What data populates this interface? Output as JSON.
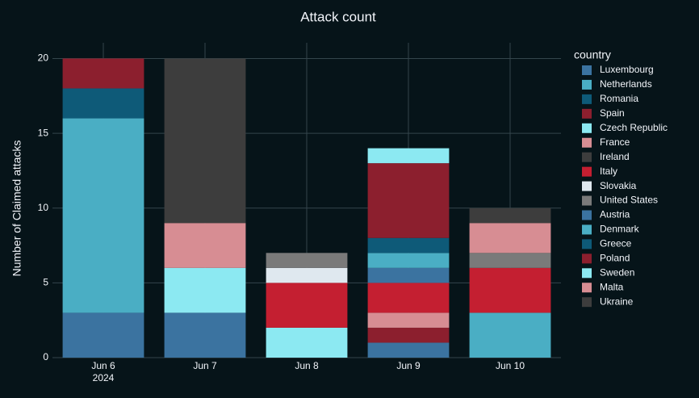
{
  "chart_data": {
    "type": "stacked_bar",
    "title": "Attack count",
    "y_label": "Number of Claimed attacks",
    "categories": [
      "Jun 6",
      "Jun 7",
      "Jun 8",
      "Jun 9",
      "Jun 10"
    ],
    "x_year_label": "2024",
    "legend_title": "country",
    "ylim": [
      0,
      21.05
    ],
    "yticks": [
      0,
      5,
      10,
      15,
      20
    ],
    "grid": true,
    "legend": "right",
    "series": [
      {
        "name": "Luxembourg",
        "color": "#3b73a0",
        "values": [
          3,
          3,
          null,
          1,
          null
        ]
      },
      {
        "name": "Netherlands",
        "color": "#4aaec4",
        "values": [
          13,
          null,
          null,
          null,
          3
        ]
      },
      {
        "name": "Romania",
        "color": "#0e5a78",
        "values": [
          2,
          null,
          null,
          null,
          null
        ]
      },
      {
        "name": "Spain",
        "color": "#8c1f2e",
        "values": [
          2,
          null,
          null,
          1,
          null
        ]
      },
      {
        "name": "Czech Republic",
        "color": "#8ce9f2",
        "values": [
          null,
          3,
          2,
          null,
          null
        ]
      },
      {
        "name": "France",
        "color": "#d78d93",
        "values": [
          null,
          3,
          null,
          1,
          null
        ]
      },
      {
        "name": "Ireland",
        "color": "#3d3d3d",
        "values": [
          null,
          11,
          null,
          null,
          null
        ]
      },
      {
        "name": "Italy",
        "color": "#c41f31",
        "values": [
          null,
          null,
          3,
          2,
          3
        ]
      },
      {
        "name": "Slovakia",
        "color": "#dfe8ef",
        "values": [
          null,
          null,
          1,
          null,
          null
        ]
      },
      {
        "name": "United States",
        "color": "#7a7a7a",
        "values": [
          null,
          null,
          1,
          null,
          1
        ]
      },
      {
        "name": "Austria",
        "color": "#3b73a0",
        "values": [
          null,
          null,
          null,
          1,
          null
        ]
      },
      {
        "name": "Denmark",
        "color": "#4aaec4",
        "values": [
          null,
          null,
          null,
          1,
          null
        ]
      },
      {
        "name": "Greece",
        "color": "#0e5a78",
        "values": [
          null,
          null,
          null,
          1,
          null
        ]
      },
      {
        "name": "Poland",
        "color": "#8c1f2e",
        "values": [
          null,
          null,
          null,
          5,
          null
        ]
      },
      {
        "name": "Sweden",
        "color": "#8ce9f2",
        "values": [
          null,
          null,
          null,
          1,
          null
        ]
      },
      {
        "name": "Malta",
        "color": "#d78d93",
        "values": [
          null,
          null,
          null,
          null,
          2
        ]
      },
      {
        "name": "Ukraine",
        "color": "#3d3d3d",
        "values": [
          null,
          null,
          null,
          null,
          1
        ]
      }
    ]
  }
}
